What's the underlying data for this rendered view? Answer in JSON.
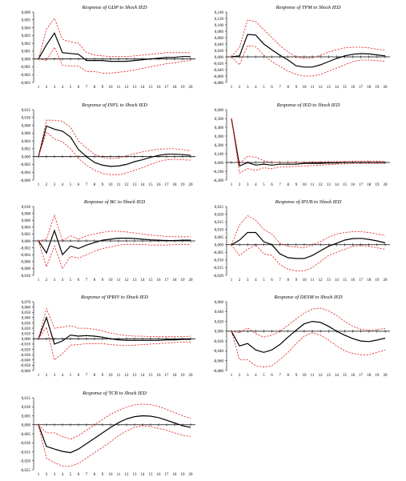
{
  "chart_data": [
    {
      "type": "line",
      "title": "Response of GDP to Shock IED",
      "x": [
        1,
        2,
        3,
        4,
        5,
        6,
        7,
        8,
        9,
        10,
        11,
        12,
        13,
        14,
        15,
        16,
        17,
        18,
        19,
        20
      ],
      "ylim": [
        -0.003,
        0.006
      ],
      "yticks": [
        "0,006",
        "0,005",
        "0,004",
        "0,003",
        "0,002",
        "0,001",
        "0,000",
        "-0,001",
        "-0,002",
        "-0,003"
      ],
      "series": [
        {
          "role": "response",
          "values": [
            0,
            0.0018,
            0.0033,
            0.0008,
            0.0007,
            0.0006,
            -0.0002,
            -0.0002,
            -0.0002,
            -0.0003,
            -0.0003,
            -0.0003,
            -0.0002,
            -0.0001,
            0,
            0.0001,
            0.0002,
            0.0002,
            0.0003,
            0.0003
          ]
        },
        {
          "role": "upper",
          "values": [
            0,
            0.0038,
            0.0052,
            0.0025,
            0.0022,
            0.002,
            0.0008,
            0.0005,
            0.0004,
            0.0003,
            0.0003,
            0.0003,
            0.0004,
            0.0005,
            0.0006,
            0.0007,
            0.0008,
            0.0008,
            0.0008,
            0.0008
          ]
        },
        {
          "role": "lower",
          "values": [
            0,
            -0.0002,
            0.0015,
            -0.0008,
            -0.0009,
            -0.0009,
            -0.0016,
            -0.0016,
            -0.0018,
            -0.0018,
            -0.0017,
            -0.0016,
            -0.0014,
            -0.0012,
            -0.001,
            -0.0008,
            -0.0006,
            -0.0005,
            -0.0003,
            -0.0002
          ]
        }
      ]
    },
    {
      "type": "line",
      "title": "Response of TPM to Shock IED",
      "x": [
        1,
        2,
        3,
        4,
        5,
        6,
        7,
        8,
        9,
        10,
        11,
        12,
        13,
        14,
        15,
        16,
        17,
        18,
        19,
        20
      ],
      "ylim": [
        -0.08,
        0.14
      ],
      "yticks": [
        "0,140",
        "0,120",
        "0,100",
        "0,080",
        "0,060",
        "0,040",
        "0,020",
        "0,000",
        "-0,020",
        "-0,040",
        "-0,060",
        "-0,080"
      ],
      "series": [
        {
          "role": "response",
          "values": [
            0,
            0.003,
            0.07,
            0.068,
            0.04,
            0.022,
            0.005,
            -0.01,
            -0.028,
            -0.032,
            -0.032,
            -0.025,
            -0.015,
            -0.005,
            0.003,
            0.008,
            0.01,
            0.009,
            0.006,
            0.003
          ]
        },
        {
          "role": "upper",
          "values": [
            0,
            0.03,
            0.115,
            0.11,
            0.085,
            0.06,
            0.035,
            0.015,
            0.0,
            -0.005,
            -0.003,
            0.005,
            0.015,
            0.022,
            0.028,
            0.03,
            0.03,
            0.028,
            0.024,
            0.02
          ]
        },
        {
          "role": "lower",
          "values": [
            0,
            -0.025,
            0.035,
            0.032,
            0.005,
            -0.015,
            -0.03,
            -0.045,
            -0.055,
            -0.06,
            -0.06,
            -0.055,
            -0.045,
            -0.035,
            -0.025,
            -0.015,
            -0.01,
            -0.01,
            -0.012,
            -0.014
          ]
        }
      ]
    },
    {
      "type": "line",
      "title": "Response of INFL to Shock IED",
      "x": [
        1,
        2,
        3,
        4,
        5,
        6,
        7,
        8,
        9,
        10,
        11,
        12,
        13,
        14,
        15,
        16,
        17,
        18,
        19,
        20
      ],
      "ylim": [
        -0.006,
        0.012
      ],
      "yticks": [
        "0,012",
        "0,010",
        "0,008",
        "0,006",
        "0,004",
        "0,002",
        "0,000",
        "-0,002",
        "-0,004",
        "-0,006"
      ],
      "series": [
        {
          "role": "response",
          "values": [
            0,
            0.0078,
            0.007,
            0.0065,
            0.005,
            0.0018,
            0.0,
            -0.0015,
            -0.0022,
            -0.0025,
            -0.0024,
            -0.002,
            -0.0013,
            -0.0008,
            -0.0002,
            0.0003,
            0.0006,
            0.0006,
            0.0005,
            0.0003
          ]
        },
        {
          "role": "upper",
          "values": [
            0,
            0.0093,
            0.0093,
            0.009,
            0.0075,
            0.004,
            0.0022,
            0.0006,
            -0.0002,
            -0.0005,
            -0.0004,
            0.0002,
            0.0008,
            0.0012,
            0.0016,
            0.0019,
            0.002,
            0.002,
            0.0018,
            0.0015
          ]
        },
        {
          "role": "lower",
          "values": [
            0,
            0.0063,
            0.0045,
            0.0038,
            0.002,
            -0.0005,
            -0.0022,
            -0.0035,
            -0.0043,
            -0.0046,
            -0.0046,
            -0.0042,
            -0.0035,
            -0.0028,
            -0.002,
            -0.0013,
            -0.0008,
            -0.0007,
            -0.0008,
            -0.0009
          ]
        }
      ]
    },
    {
      "type": "line",
      "title": "Response of IED to Shock IED",
      "x": [
        1,
        2,
        3,
        4,
        5,
        6,
        7,
        8,
        9,
        10,
        11,
        12,
        13,
        14,
        15,
        16,
        17,
        18,
        19,
        20
      ],
      "ylim": [
        -0.2,
        0.6
      ],
      "yticks": [
        "0,600",
        "0,500",
        "0,400",
        "0,300",
        "0,200",
        "0,100",
        "0,000",
        "-0,100",
        "-0,200"
      ],
      "series": [
        {
          "role": "response",
          "values": [
            0.5,
            -0.04,
            0.0,
            -0.03,
            -0.02,
            -0.03,
            -0.02,
            -0.02,
            -0.02,
            -0.01,
            -0.01,
            -0.01,
            -0.005,
            -0.005,
            0,
            0,
            0,
            0,
            0,
            0
          ]
        },
        {
          "role": "upper",
          "values": [
            0.5,
            -0.01,
            0.07,
            0.06,
            0.02,
            0.0,
            0.0,
            0.0,
            0.0,
            0.0,
            0.005,
            0.005,
            0.01,
            0.01,
            0.01,
            0.015,
            0.015,
            0.015,
            0.015,
            0.01
          ]
        },
        {
          "role": "lower",
          "values": [
            0.5,
            -0.12,
            -0.07,
            -0.09,
            -0.06,
            -0.07,
            -0.05,
            -0.05,
            -0.045,
            -0.04,
            -0.035,
            -0.03,
            -0.025,
            -0.02,
            -0.015,
            -0.01,
            -0.01,
            -0.01,
            -0.01,
            -0.01
          ]
        }
      ]
    },
    {
      "type": "line",
      "title": "Response of BC to Shock IED",
      "x": [
        1,
        2,
        3,
        4,
        5,
        6,
        7,
        8,
        9,
        10,
        11,
        12,
        13,
        14,
        15,
        16,
        17,
        18,
        19,
        20
      ],
      "ylim": [
        -0.01,
        0.01
      ],
      "yticks": [
        "0,010",
        "0,008",
        "0,006",
        "0,004",
        "0,002",
        "0,000",
        "-0,002",
        "-0,004",
        "-0,006",
        "-0,008",
        "-0,010"
      ],
      "series": [
        {
          "role": "response",
          "values": [
            0,
            -0.0035,
            0.003,
            -0.004,
            -0.0015,
            -0.0022,
            -0.0012,
            -0.0005,
            0.0002,
            0.0005,
            0.0008,
            0.0008,
            0.0007,
            0.0005,
            0.0003,
            0.0002,
            0.0001,
            0.0001,
            0.0002,
            0.0002
          ]
        },
        {
          "role": "upper",
          "values": [
            0,
            0.0005,
            0.0075,
            0.0,
            0.0015,
            0.0005,
            0.0015,
            0.002,
            0.0025,
            0.0028,
            0.0028,
            0.0026,
            0.0023,
            0.002,
            0.0017,
            0.0015,
            0.0013,
            0.0012,
            0.0012,
            0.0012
          ]
        },
        {
          "role": "lower",
          "values": [
            0,
            -0.0075,
            -0.0015,
            -0.008,
            -0.0045,
            -0.005,
            -0.004,
            -0.003,
            -0.0022,
            -0.0018,
            -0.0012,
            -0.001,
            -0.001,
            -0.001,
            -0.0012,
            -0.0012,
            -0.0012,
            -0.0011,
            -0.001,
            -0.001
          ]
        }
      ]
    },
    {
      "type": "line",
      "title": "Response of IPUB to Shock IED",
      "x": [
        1,
        2,
        3,
        4,
        5,
        6,
        7,
        8,
        9,
        10,
        11,
        12,
        13,
        14,
        15,
        16,
        17,
        18,
        19,
        20
      ],
      "ylim": [
        -0.02,
        0.025
      ],
      "yticks": [
        "0,025",
        "0,020",
        "0,015",
        "0,010",
        "0,005",
        "0,000",
        "-0,005",
        "-0,010",
        "-0,015",
        "-0,020"
      ],
      "series": [
        {
          "role": "response",
          "values": [
            0,
            0.003,
            0.008,
            0.008,
            0.002,
            0.0,
            -0.006,
            -0.0085,
            -0.009,
            -0.009,
            -0.007,
            -0.004,
            -0.001,
            0.001,
            0.003,
            0.004,
            0.0042,
            0.0035,
            0.0025,
            0.0012
          ]
        },
        {
          "role": "upper",
          "values": [
            0,
            0.013,
            0.019,
            0.016,
            0.01,
            0.007,
            0.001,
            -0.001,
            -0.0015,
            -0.002,
            0.0,
            0.002,
            0.005,
            0.007,
            0.008,
            0.0085,
            0.0085,
            0.008,
            0.007,
            0.006
          ]
        },
        {
          "role": "lower",
          "values": [
            0,
            -0.007,
            -0.003,
            0.0,
            -0.006,
            -0.007,
            -0.013,
            -0.016,
            -0.017,
            -0.017,
            -0.015,
            -0.011,
            -0.007,
            -0.005,
            -0.003,
            -0.001,
            -0.0005,
            -0.001,
            -0.002,
            -0.003
          ]
        }
      ]
    },
    {
      "type": "line",
      "title": "Response of IPRIV to Shock IED",
      "x": [
        1,
        2,
        3,
        4,
        5,
        6,
        7,
        8,
        9,
        10,
        11,
        12,
        13,
        14,
        15,
        16,
        17,
        18,
        19,
        20
      ],
      "ylim": [
        -0.06,
        0.07
      ],
      "yticks": [
        "0,070",
        "0,060",
        "0,050",
        "0,040",
        "0,030",
        "0,020",
        "0,010",
        "0,000",
        "-0,010",
        "-0,020",
        "-0,030",
        "-0,040",
        "-0,050",
        "-0,060"
      ],
      "series": [
        {
          "role": "response",
          "values": [
            0,
            0.04,
            -0.01,
            -0.004,
            0.007,
            0.005,
            0.006,
            0.005,
            0.003,
            0.0,
            -0.002,
            -0.003,
            -0.003,
            -0.003,
            -0.003,
            -0.003,
            -0.002,
            -0.002,
            -0.001,
            -0.001
          ]
        },
        {
          "role": "upper",
          "values": [
            0,
            0.057,
            0.02,
            0.022,
            0.025,
            0.02,
            0.02,
            0.018,
            0.015,
            0.011,
            0.008,
            0.006,
            0.005,
            0.005,
            0.004,
            0.004,
            0.004,
            0.004,
            0.004,
            0.005
          ]
        },
        {
          "role": "lower",
          "values": [
            0,
            0.022,
            -0.04,
            -0.028,
            -0.012,
            -0.011,
            -0.009,
            -0.009,
            -0.009,
            -0.011,
            -0.012,
            -0.013,
            -0.012,
            -0.011,
            -0.01,
            -0.009,
            -0.008,
            -0.007,
            -0.006,
            -0.006
          ]
        }
      ]
    },
    {
      "type": "line",
      "title": "Response of DESM to Shock IED",
      "x": [
        1,
        2,
        3,
        4,
        5,
        6,
        7,
        8,
        9,
        10,
        11,
        12,
        13,
        14,
        15,
        16,
        17,
        18,
        19,
        20
      ],
      "ylim": [
        -0.08,
        0.06
      ],
      "yticks": [
        "0,060",
        "0,040",
        "0,020",
        "0,000",
        "-0,020",
        "-0,040",
        "-0,060",
        "-0,080"
      ],
      "series": [
        {
          "role": "response",
          "values": [
            0,
            -0.03,
            -0.025,
            -0.038,
            -0.043,
            -0.038,
            -0.027,
            -0.012,
            0.002,
            0.015,
            0.02,
            0.018,
            0.01,
            0.0,
            -0.008,
            -0.015,
            -0.02,
            -0.021,
            -0.018,
            -0.014
          ]
        },
        {
          "role": "upper",
          "values": [
            0,
            -0.003,
            0.007,
            -0.005,
            -0.012,
            -0.008,
            0.0,
            0.012,
            0.025,
            0.037,
            0.045,
            0.047,
            0.042,
            0.032,
            0.02,
            0.01,
            0.004,
            0.002,
            0.003,
            0.006
          ]
        },
        {
          "role": "lower",
          "values": [
            0,
            -0.058,
            -0.058,
            -0.07,
            -0.073,
            -0.07,
            -0.058,
            -0.043,
            -0.025,
            -0.01,
            -0.003,
            -0.008,
            -0.018,
            -0.03,
            -0.04,
            -0.045,
            -0.048,
            -0.048,
            -0.043,
            -0.038
          ]
        }
      ]
    },
    {
      "type": "line",
      "title": "Response of TCR to Shock IED",
      "x": [
        1,
        2,
        3,
        4,
        5,
        6,
        7,
        8,
        9,
        10,
        11,
        12,
        13,
        14,
        15,
        16,
        17,
        18,
        19,
        20
      ],
      "ylim": [
        -0.025,
        0.015
      ],
      "yticks": [
        "0,015",
        "0,010",
        "0,005",
        "0,000",
        "-0,005",
        "-0,010",
        "-0,015",
        "-0,020",
        "-0,025"
      ],
      "series": [
        {
          "role": "response",
          "values": [
            0,
            -0.012,
            -0.0135,
            -0.0148,
            -0.0155,
            -0.0135,
            -0.0105,
            -0.0075,
            -0.0045,
            -0.0015,
            0.0012,
            0.0032,
            0.0045,
            0.005,
            0.0048,
            0.004,
            0.0025,
            0.001,
            -0.0005,
            -0.0015
          ]
        },
        {
          "role": "upper",
          "values": [
            0,
            -0.0045,
            -0.0045,
            -0.0065,
            -0.008,
            -0.006,
            -0.003,
            0.0,
            0.003,
            0.0058,
            0.008,
            0.0098,
            0.011,
            0.0115,
            0.0112,
            0.0102,
            0.0085,
            0.0068,
            0.005,
            0.0035
          ]
        },
        {
          "role": "lower",
          "values": [
            0,
            -0.0185,
            -0.021,
            -0.023,
            -0.023,
            -0.0215,
            -0.0185,
            -0.0155,
            -0.0125,
            -0.0095,
            -0.006,
            -0.0035,
            -0.0015,
            -0.0005,
            -0.001,
            -0.002,
            -0.003,
            -0.0045,
            -0.0058,
            -0.0065
          ]
        }
      ]
    }
  ]
}
